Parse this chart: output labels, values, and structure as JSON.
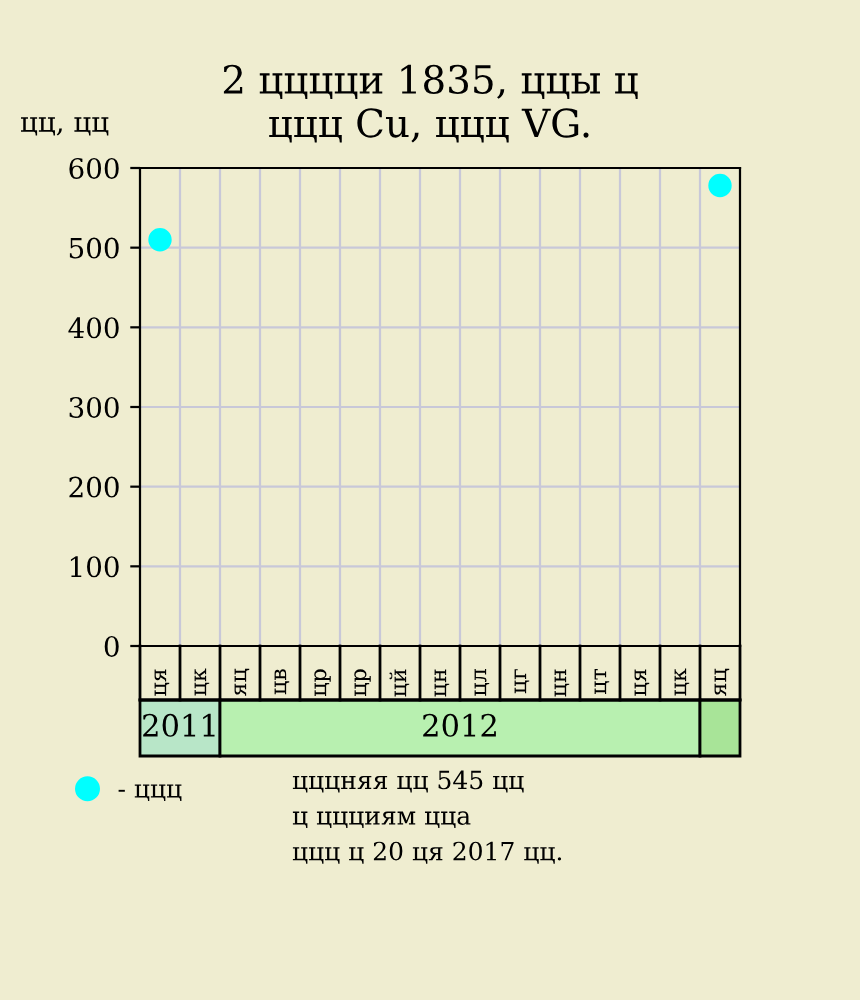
{
  "chart_data": {
    "type": "scatter",
    "title": "2 цццци 1835, ццы ц\nццц Cu, ццц VG.",
    "ylabel": "цц, цц",
    "categories": [
      "ця",
      "цк",
      "яц",
      "цв",
      "цр",
      "цр",
      "цй",
      "цн",
      "цл",
      "цг",
      "цн",
      "цт",
      "ця",
      "цк",
      "яц"
    ],
    "series": [
      {
        "name": "- ццц",
        "color": "#00ffff",
        "values": [
          510,
          null,
          null,
          null,
          null,
          null,
          null,
          null,
          null,
          null,
          null,
          null,
          null,
          null,
          578
        ]
      }
    ],
    "annotations": [
      "2011",
      "2012",
      "цццняя цц 545 цц\nц ццциям цца\nццц ц 20 ця 2017 цц."
    ],
    "ylim": [
      0,
      600
    ],
    "yticks": [
      0,
      100,
      200,
      300,
      400,
      500,
      600
    ],
    "grid": true,
    "legend": "bottom left",
    "marker": "circle"
  }
}
